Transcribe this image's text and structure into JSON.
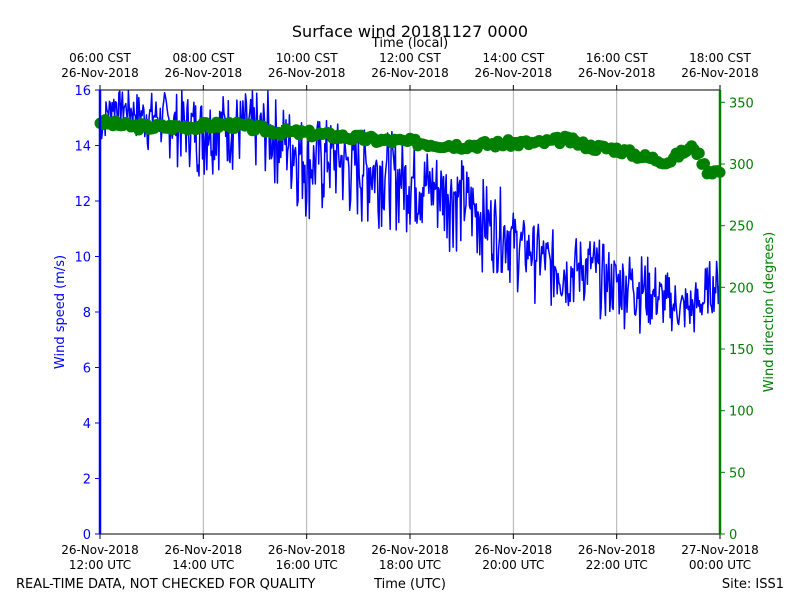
{
  "chart_data": {
    "type": "line",
    "title": "Surface wind 20181127 0000",
    "top_axis_label": "Time (local)",
    "xlabel": "Time (UTC)",
    "ylabel_left": "Wind speed (m/s)",
    "ylabel_right": "Wind direction (degrees)",
    "footer_left": "REAL-TIME DATA, NOT CHECKED FOR QUALITY",
    "footer_right": "Site: ISS1",
    "x_range_hours_utc": [
      12,
      24
    ],
    "ylim_left": [
      0,
      16
    ],
    "ylim_right": [
      0,
      360
    ],
    "grid": "vertical",
    "colors": {
      "speed": "#0000ff",
      "direction": "#008000",
      "grid": "#b0b0b0",
      "axis": "#000000"
    },
    "bottom_ticks": [
      {
        "hour": 12,
        "date": "26-Nov-2018",
        "time": "12:00 UTC"
      },
      {
        "hour": 14,
        "date": "26-Nov-2018",
        "time": "14:00 UTC"
      },
      {
        "hour": 16,
        "date": "26-Nov-2018",
        "time": "16:00 UTC"
      },
      {
        "hour": 18,
        "date": "26-Nov-2018",
        "time": "18:00 UTC"
      },
      {
        "hour": 20,
        "date": "26-Nov-2018",
        "time": "20:00 UTC"
      },
      {
        "hour": 22,
        "date": "26-Nov-2018",
        "time": "22:00 UTC"
      },
      {
        "hour": 24,
        "date": "27-Nov-2018",
        "time": "00:00 UTC"
      }
    ],
    "top_ticks": [
      {
        "hour": 12,
        "time": "06:00 CST",
        "date": "26-Nov-2018"
      },
      {
        "hour": 14,
        "time": "08:00 CST",
        "date": "26-Nov-2018"
      },
      {
        "hour": 16,
        "time": "10:00 CST",
        "date": "26-Nov-2018"
      },
      {
        "hour": 18,
        "time": "12:00 CST",
        "date": "26-Nov-2018"
      },
      {
        "hour": 20,
        "time": "14:00 CST",
        "date": "26-Nov-2018"
      },
      {
        "hour": 22,
        "time": "16:00 CST",
        "date": "26-Nov-2018"
      },
      {
        "hour": 24,
        "time": "18:00 CST",
        "date": "26-Nov-2018"
      }
    ],
    "left_ticks": [
      "0",
      "2",
      "4",
      "6",
      "8",
      "10",
      "12",
      "14",
      "16"
    ],
    "right_ticks": [
      "0",
      "50",
      "100",
      "150",
      "200",
      "250",
      "300",
      "350"
    ],
    "series": [
      {
        "name": "Wind speed",
        "axis": "left",
        "style": "line",
        "x": [
          12.0,
          12.25,
          12.5,
          12.75,
          13.0,
          13.25,
          13.5,
          13.75,
          14.0,
          14.25,
          14.5,
          14.75,
          15.0,
          15.25,
          15.5,
          15.75,
          16.0,
          16.25,
          16.5,
          16.75,
          17.0,
          17.25,
          17.5,
          17.75,
          18.0,
          18.25,
          18.5,
          18.75,
          19.0,
          19.25,
          19.5,
          19.75,
          20.0,
          20.25,
          20.5,
          20.75,
          21.0,
          21.25,
          21.5,
          21.75,
          22.0,
          22.25,
          22.5,
          22.75,
          23.0,
          23.25,
          23.5,
          23.75,
          24.0
        ],
        "values": [
          14.8,
          15.6,
          15.4,
          15.2,
          15.1,
          15.0,
          14.8,
          14.9,
          14.7,
          14.8,
          14.9,
          14.6,
          14.7,
          14.5,
          14.3,
          14.0,
          13.4,
          13.6,
          13.8,
          13.5,
          13.3,
          13.2,
          13.3,
          13.0,
          12.9,
          12.6,
          12.5,
          12.4,
          12.2,
          11.8,
          11.3,
          11.1,
          10.8,
          10.4,
          10.2,
          9.7,
          9.5,
          9.6,
          9.8,
          9.2,
          9.1,
          9.2,
          8.9,
          8.6,
          8.3,
          8.1,
          8.2,
          8.4,
          9.2
        ],
        "min_values": [
          13.8,
          14.6,
          14.4,
          14.0,
          13.5,
          13.6,
          13.2,
          13.1,
          12.6,
          13.1,
          13.0,
          12.9,
          12.9,
          12.8,
          12.3,
          11.8,
          11.2,
          11.0,
          11.5,
          11.1,
          10.9,
          10.9,
          11.1,
          10.8,
          10.8,
          10.6,
          10.4,
          10.2,
          10.0,
          9.6,
          9.3,
          9.4,
          8.7,
          8.5,
          8.2,
          8.0,
          7.8,
          8.1,
          8.1,
          7.6,
          7.5,
          7.3,
          7.2,
          7.3,
          7.3,
          7.1,
          6.9,
          7.9,
          8.0
        ],
        "max_values": [
          15.6,
          16.0,
          16.0,
          16.0,
          16.0,
          16.0,
          16.0,
          16.0,
          16.0,
          16.0,
          16.0,
          16.0,
          16.0,
          16.0,
          15.7,
          15.5,
          15.2,
          15.1,
          15.0,
          14.8,
          14.7,
          14.6,
          14.7,
          14.4,
          14.3,
          14.3,
          14.1,
          13.9,
          13.6,
          13.2,
          12.7,
          12.5,
          11.7,
          11.3,
          11.2,
          11.0,
          10.9,
          10.8,
          11.0,
          10.5,
          10.4,
          10.3,
          10.2,
          9.9,
          9.5,
          9.4,
          9.2,
          9.9,
          10.0
        ]
      },
      {
        "name": "Wind direction",
        "axis": "right",
        "style": "markers",
        "x": [
          12.0,
          12.5,
          13.0,
          13.5,
          14.0,
          14.5,
          15.0,
          15.5,
          16.0,
          16.5,
          17.0,
          17.5,
          18.0,
          18.5,
          19.0,
          19.5,
          20.0,
          20.5,
          21.0,
          21.5,
          22.0,
          22.5,
          23.0,
          23.25,
          23.5,
          23.75,
          24.0
        ],
        "values": [
          334,
          331,
          330,
          330,
          331,
          332,
          329,
          326,
          325,
          323,
          321,
          319,
          318,
          316,
          315,
          316,
          317,
          317,
          320,
          314,
          312,
          306,
          302,
          309,
          314,
          295,
          294
        ]
      }
    ]
  }
}
